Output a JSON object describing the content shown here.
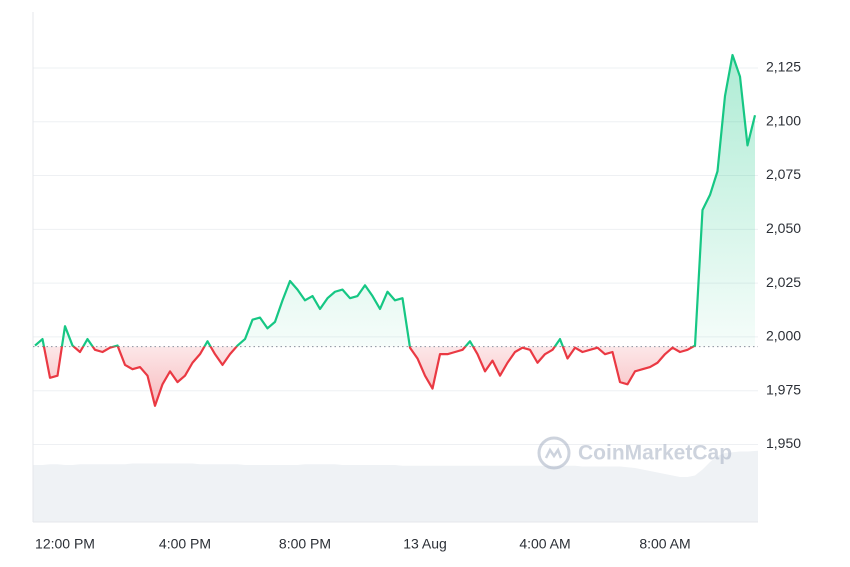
{
  "chart_data": {
    "type": "line",
    "categories": [
      null,
      null,
      null,
      null,
      "12:00 PM",
      null,
      null,
      null,
      null,
      null,
      null,
      null,
      null,
      null,
      null,
      null,
      null,
      null,
      null,
      null,
      "4:00 PM",
      null,
      null,
      null,
      null,
      null,
      null,
      null,
      null,
      null,
      null,
      null,
      null,
      null,
      null,
      null,
      "8:00 PM",
      null,
      null,
      null,
      null,
      null,
      null,
      null,
      null,
      null,
      null,
      null,
      null,
      null,
      null,
      null,
      "13 Aug",
      null,
      null,
      null,
      null,
      null,
      null,
      null,
      null,
      null,
      null,
      null,
      null,
      null,
      null,
      null,
      "4:00 AM",
      null,
      null,
      null,
      null,
      null,
      null,
      null,
      null,
      null,
      null,
      null,
      null,
      null,
      null,
      null,
      "8:00 AM",
      null,
      null,
      null,
      null,
      null,
      null,
      null,
      null,
      null,
      null,
      null,
      null
    ],
    "values": [
      1996,
      1999,
      1981,
      1982,
      2005,
      1996,
      1993,
      1999,
      1994,
      1993,
      1995,
      1996,
      1987,
      1985,
      1986,
      1982,
      1968,
      1978,
      1984,
      1979,
      1982,
      1988,
      1992,
      1998,
      1992,
      1987,
      1992,
      1996,
      1999,
      2008,
      2009,
      2004,
      2007,
      2017,
      2026,
      2022,
      2017,
      2019,
      2013,
      2018,
      2021,
      2022,
      2018,
      2019,
      2024,
      2019,
      2013,
      2021,
      2017,
      2018,
      1995,
      1990,
      1982,
      1976,
      1992,
      1992,
      1993,
      1994,
      1998,
      1992,
      1984,
      1989,
      1982,
      1988,
      1993,
      1995,
      1994,
      1988,
      1992,
      1994,
      1999,
      1990,
      1995,
      1993,
      1994,
      1995,
      1992,
      1993,
      1979,
      1978,
      1984,
      1985,
      1986,
      1988,
      1992,
      1995,
      1993,
      1994,
      1996,
      2059,
      2066,
      2077,
      2112,
      2131,
      2121,
      2089,
      2103
    ],
    "baseline": 1995.5,
    "up_color": "#16c784",
    "down_color": "#ea3943",
    "ylim": [
      1914,
      2151
    ],
    "yticks": [
      {
        "value": 1950,
        "label": "1,950"
      },
      {
        "value": 1975,
        "label": "1,975"
      },
      {
        "value": 2000,
        "label": "2,000"
      },
      {
        "value": 2025,
        "label": "2,025"
      },
      {
        "value": 2050,
        "label": "2,050"
      },
      {
        "value": 2075,
        "label": "2,075"
      },
      {
        "value": 2100,
        "label": "2,100"
      },
      {
        "value": 2125,
        "label": "2,125"
      }
    ],
    "grid": true,
    "volume": {
      "color": "#eff2f5",
      "ylim": [
        0,
        100
      ],
      "values": [
        76,
        76,
        77,
        77,
        76,
        76,
        77,
        77,
        77,
        77,
        77,
        77,
        77,
        78,
        78,
        78,
        78,
        78,
        78,
        78,
        78,
        78,
        77,
        77,
        77,
        77,
        77,
        77,
        76,
        76,
        76,
        76,
        76,
        76,
        76,
        76,
        77,
        77,
        77,
        77,
        77,
        76,
        76,
        76,
        76,
        76,
        76,
        76,
        76,
        75,
        75,
        75,
        75,
        75,
        75,
        75,
        75,
        75,
        75,
        75,
        75,
        75,
        75,
        75,
        75,
        75,
        75,
        75,
        75,
        75,
        75,
        75,
        75,
        74,
        74,
        74,
        74,
        74,
        74,
        73,
        72,
        70,
        68,
        66,
        64,
        62,
        60,
        60,
        62,
        70,
        80,
        88,
        92,
        93,
        94,
        94,
        95
      ]
    },
    "watermark": "CoinMarketCap"
  }
}
